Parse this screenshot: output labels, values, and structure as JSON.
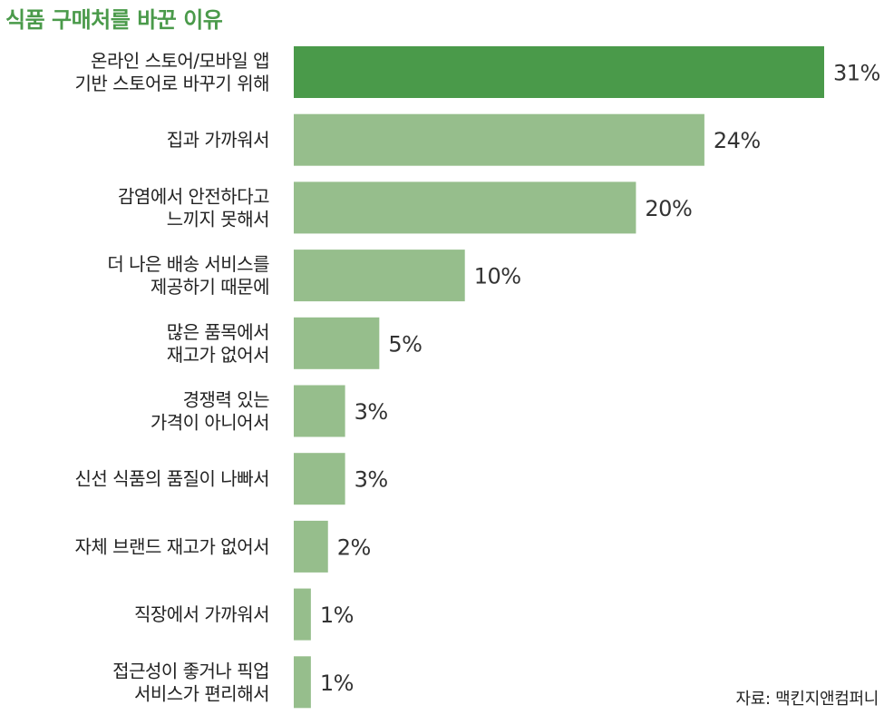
{
  "chart_data": {
    "type": "bar",
    "orientation": "horizontal",
    "title": "식품 구매처를 바꾼 이유",
    "categories": [
      [
        "온라인 스토어/모바일 앱",
        "기반 스토어로 바꾸기 위해"
      ],
      [
        "집과 가까워서"
      ],
      [
        "감염에서 안전하다고",
        "느끼지 못해서"
      ],
      [
        "더 나은 배송 서비스를",
        "제공하기 때문에"
      ],
      [
        "많은 품목에서",
        "재고가 없어서"
      ],
      [
        "경쟁력 있는",
        "가격이 아니어서"
      ],
      [
        "신선 식품의 품질이 나빠서"
      ],
      [
        "자체 브랜드 재고가 없어서"
      ],
      [
        "직장에서 가까워서"
      ],
      [
        "접근성이 좋거나 픽업",
        "서비스가 편리해서"
      ]
    ],
    "values": [
      31,
      24,
      20,
      10,
      5,
      3,
      3,
      2,
      1,
      1
    ],
    "value_suffix": "%",
    "xlim": [
      0,
      31
    ],
    "grid": false,
    "legend": "none",
    "colors": {
      "highlight": "#4a9a4a",
      "bar": "#96be8c",
      "title": "#4a9a4a"
    },
    "source": "자료: 맥킨지앤컴퍼니"
  }
}
